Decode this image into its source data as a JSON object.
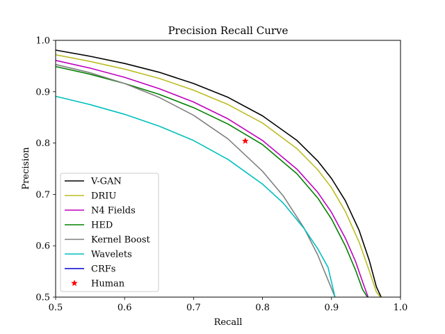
{
  "chart_data": {
    "type": "line",
    "title": "Precision Recall Curve",
    "xlabel": "Recall",
    "ylabel": "Precision",
    "xlim": [
      0.5,
      1.0
    ],
    "ylim": [
      0.5,
      1.0
    ],
    "xticks": [
      "0.5",
      "0.6",
      "0.7",
      "0.8",
      "0.9",
      "1.0"
    ],
    "yticks": [
      "0.5",
      "0.6",
      "0.7",
      "0.8",
      "0.9",
      "1.0"
    ],
    "grid": false,
    "legend_position": "lower-left",
    "series": [
      {
        "name": "V-GAN",
        "color": "#000000",
        "x": [
          0.5,
          0.55,
          0.6,
          0.65,
          0.7,
          0.75,
          0.8,
          0.85,
          0.88,
          0.9,
          0.92,
          0.94,
          0.955,
          0.965,
          0.972
        ],
        "y": [
          0.981,
          0.969,
          0.955,
          0.938,
          0.916,
          0.889,
          0.853,
          0.805,
          0.765,
          0.731,
          0.688,
          0.63,
          0.57,
          0.52,
          0.5
        ]
      },
      {
        "name": "DRIU",
        "color": "#bcbd22",
        "x": [
          0.5,
          0.55,
          0.6,
          0.65,
          0.7,
          0.75,
          0.8,
          0.85,
          0.88,
          0.9,
          0.92,
          0.94,
          0.955,
          0.965,
          0.971
        ],
        "y": [
          0.972,
          0.959,
          0.944,
          0.926,
          0.903,
          0.875,
          0.839,
          0.789,
          0.748,
          0.713,
          0.667,
          0.607,
          0.55,
          0.51,
          0.5
        ]
      },
      {
        "name": "N4 Fields",
        "color": "#bf00bf",
        "x": [
          0.5,
          0.55,
          0.6,
          0.65,
          0.7,
          0.75,
          0.8,
          0.85,
          0.88,
          0.9,
          0.92,
          0.935,
          0.945,
          0.953
        ],
        "y": [
          0.961,
          0.946,
          0.928,
          0.906,
          0.88,
          0.847,
          0.805,
          0.749,
          0.704,
          0.665,
          0.615,
          0.569,
          0.53,
          0.5
        ]
      },
      {
        "name": "HED",
        "color": "#008000",
        "x": [
          0.5,
          0.55,
          0.6,
          0.65,
          0.7,
          0.75,
          0.8,
          0.85,
          0.88,
          0.9,
          0.92,
          0.935,
          0.945,
          0.952
        ],
        "y": [
          0.949,
          0.934,
          0.916,
          0.895,
          0.869,
          0.837,
          0.797,
          0.74,
          0.693,
          0.652,
          0.6,
          0.552,
          0.515,
          0.5
        ]
      },
      {
        "name": "Kernel Boost",
        "color": "#808080",
        "x": [
          0.5,
          0.55,
          0.6,
          0.65,
          0.7,
          0.75,
          0.8,
          0.83,
          0.86,
          0.88,
          0.895,
          0.905
        ],
        "y": [
          0.953,
          0.937,
          0.916,
          0.889,
          0.854,
          0.808,
          0.745,
          0.697,
          0.635,
          0.582,
          0.533,
          0.5
        ]
      },
      {
        "name": "Wavelets",
        "color": "#00bfbf",
        "x": [
          0.5,
          0.55,
          0.6,
          0.65,
          0.7,
          0.75,
          0.8,
          0.83,
          0.86,
          0.88,
          0.895,
          0.905
        ],
        "y": [
          0.891,
          0.875,
          0.856,
          0.833,
          0.805,
          0.768,
          0.72,
          0.683,
          0.634,
          0.594,
          0.558,
          0.5
        ]
      },
      {
        "name": "CRFs",
        "color": "#0000cd",
        "x": [],
        "y": []
      }
    ],
    "points": [
      {
        "name": "Human",
        "color": "#ff0000",
        "marker": "star",
        "x": 0.775,
        "y": 0.804
      }
    ]
  }
}
